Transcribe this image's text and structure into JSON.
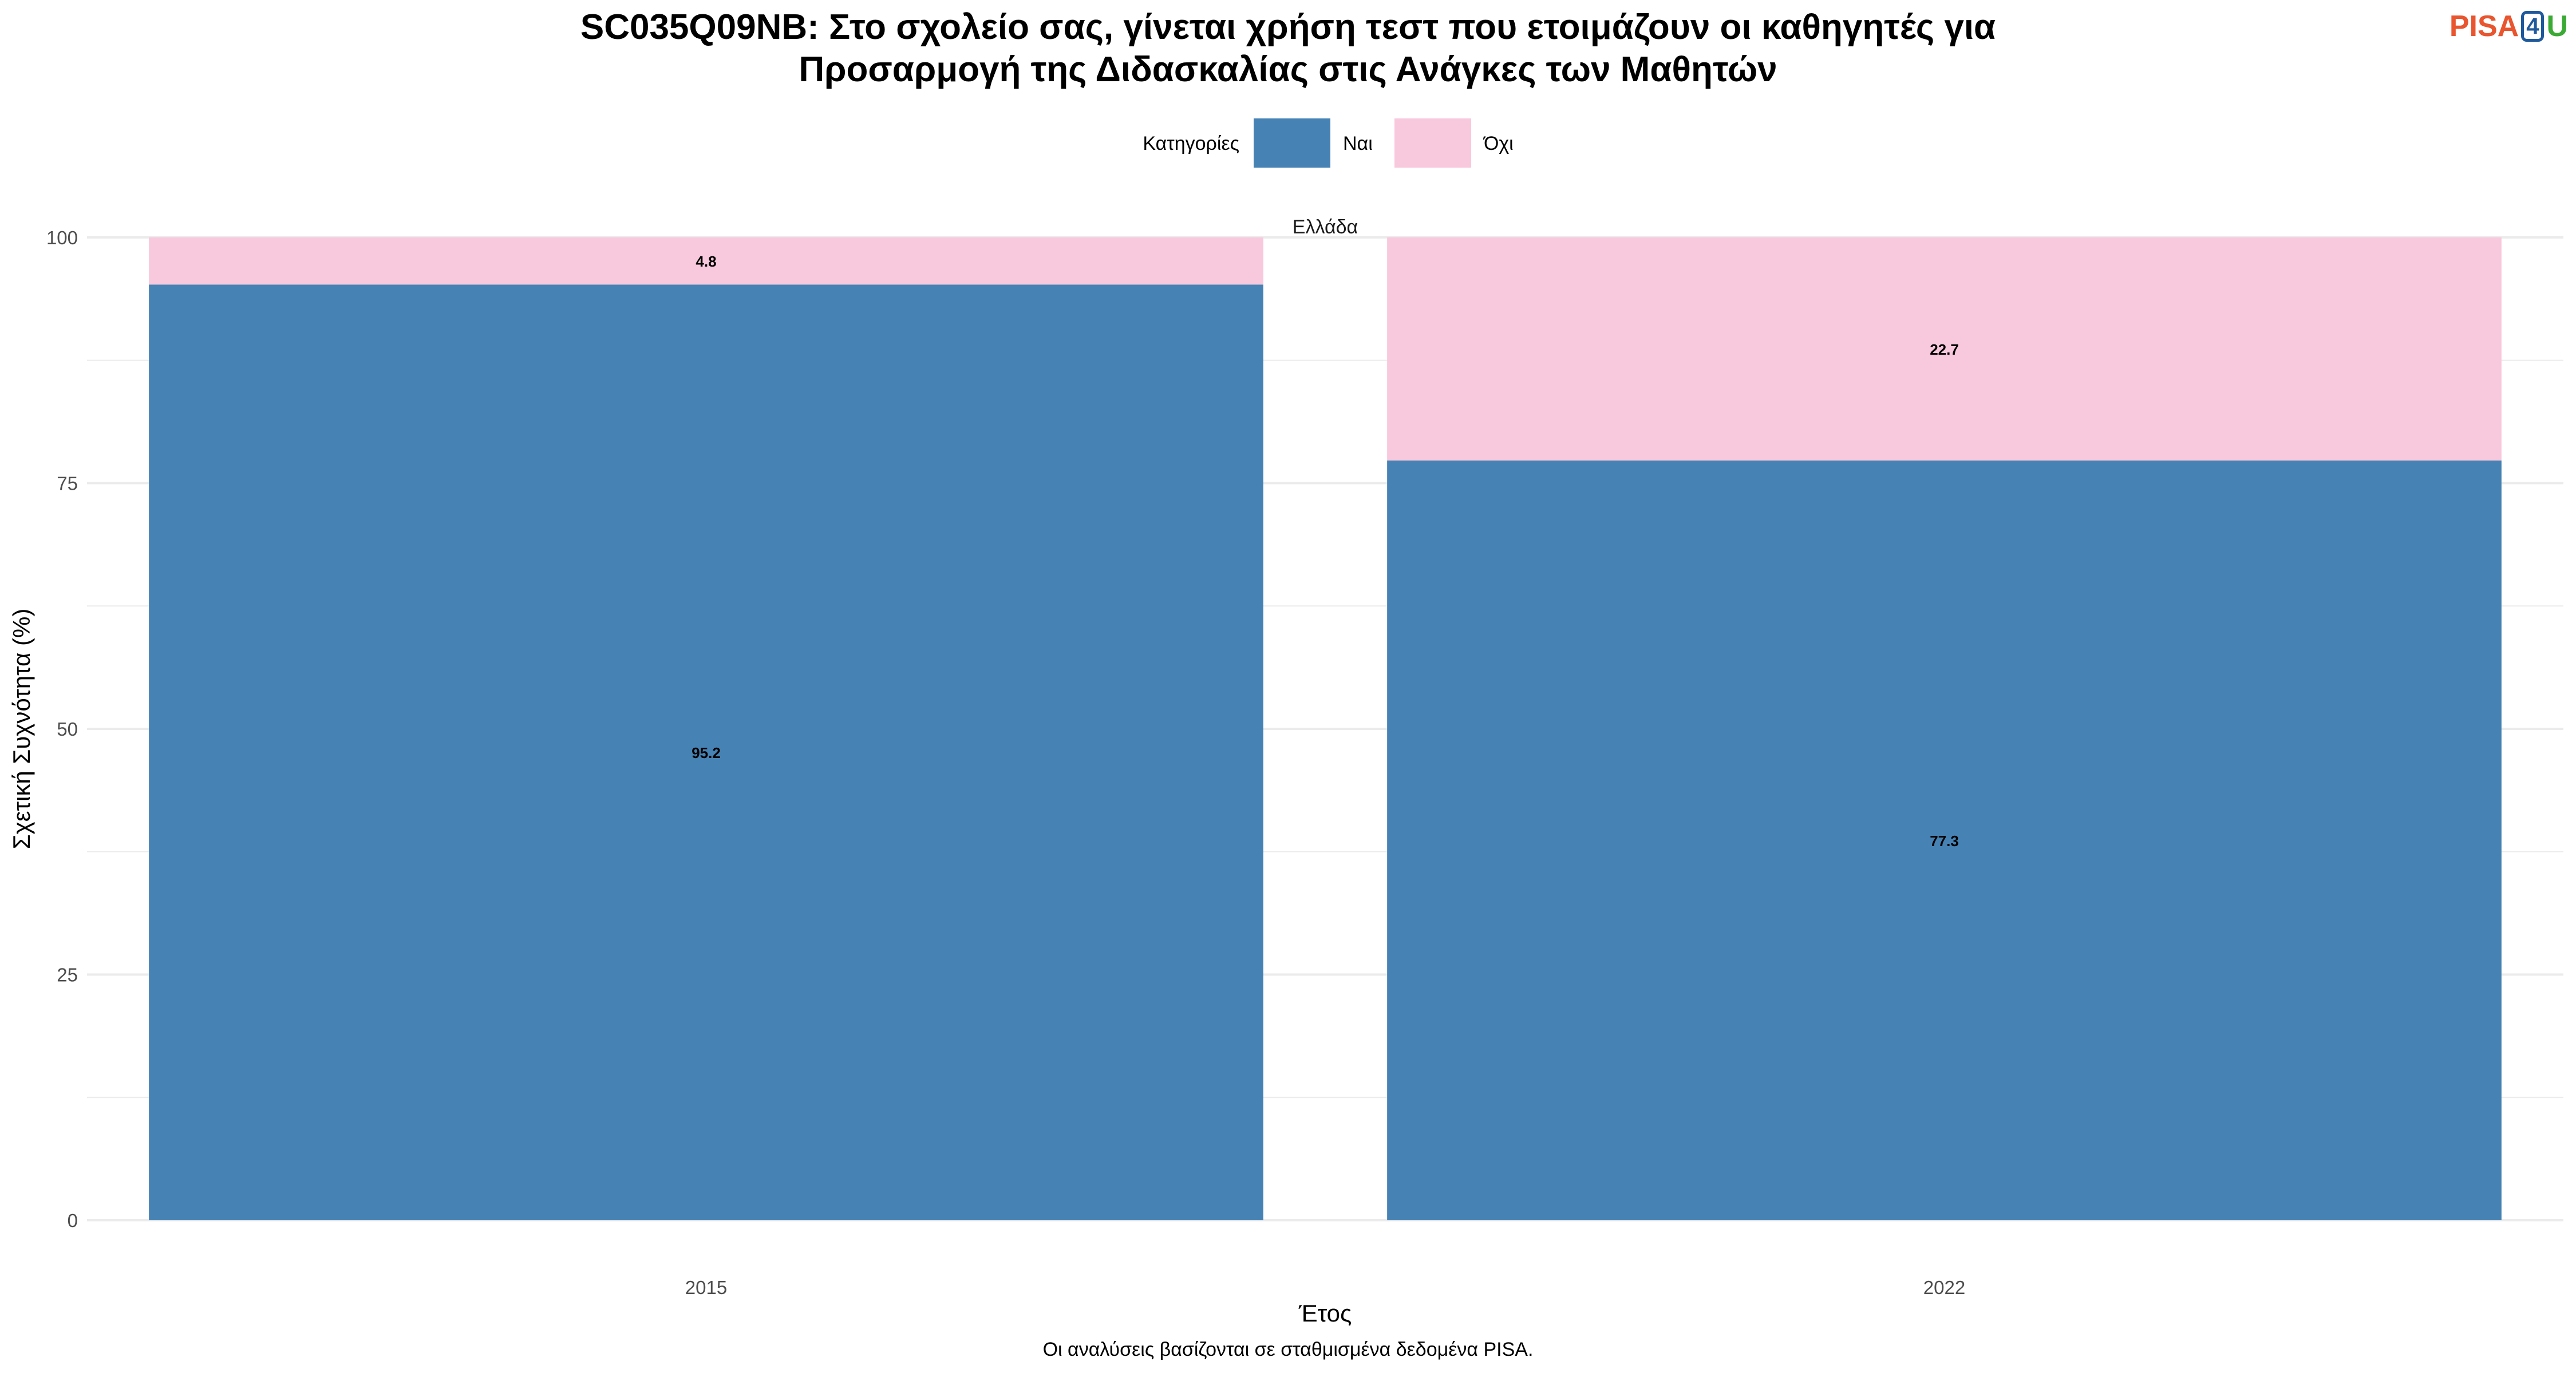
{
  "title": {
    "line1": "SC035Q09NB: Στο σχολείο σας, γίνεται χρήση τεστ που ετοιμάζουν οι καθηγητές για",
    "line2": "Προσαρμογή της Διδασκαλίας στις Ανάγκες των Μαθητών"
  },
  "logo": {
    "pisa": "PISA",
    "four": "4",
    "u": "U"
  },
  "caption": "Οι αναλύσεις βασίζονται σε σταθμισμένα δεδομένα PISA.",
  "colors": {
    "nai": "#4682b4",
    "ochi": "#f8c8dc",
    "grid": "#ebebeb"
  },
  "chart_data": {
    "type": "bar",
    "stacked": true,
    "facet": "Ελλάδα",
    "categories": [
      "2015",
      "2022"
    ],
    "series": [
      {
        "name": "Ναι",
        "values": [
          95.2,
          77.3
        ],
        "labels": [
          "95.2",
          "77.3"
        ]
      },
      {
        "name": "Όχι",
        "values": [
          4.8,
          22.7
        ],
        "labels": [
          "4.8",
          "22.7"
        ]
      }
    ],
    "legend": {
      "title": "Κατηγορίες",
      "position": "top"
    },
    "xlabel": "Έτος",
    "ylabel": "Σχετική Συχνότητα (%)",
    "ylim": [
      0,
      100
    ],
    "yticks": [
      0,
      25,
      50,
      75,
      100
    ],
    "grid": true
  }
}
